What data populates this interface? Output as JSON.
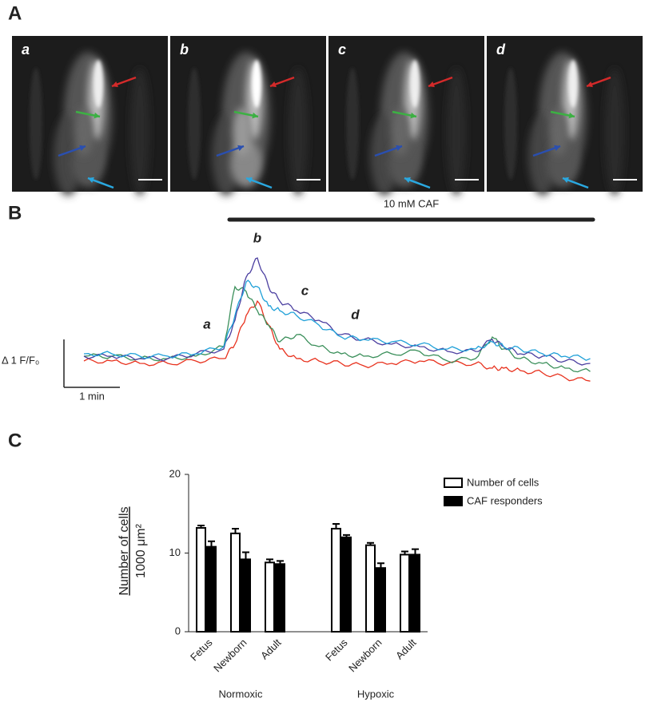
{
  "panels": [
    "A",
    "B",
    "C"
  ],
  "images": [
    "a",
    "b",
    "c",
    "d"
  ],
  "chart_data": [
    {
      "type": "line",
      "stimulus": {
        "label": "10 mM CAF",
        "start": 2.6,
        "end": 9.1
      },
      "scale_x": {
        "value": 1,
        "label": "1 min"
      },
      "scale_y": {
        "value": 1,
        "label": "Δ 1 F/F₀"
      },
      "annotations": [
        {
          "text": "a",
          "x": 2.2,
          "y": 0.8
        },
        {
          "text": "b",
          "x": 3.1,
          "y": 2.6
        },
        {
          "text": "c",
          "x": 3.95,
          "y": 1.5
        },
        {
          "text": "d",
          "x": 4.85,
          "y": 1.0
        }
      ],
      "x": [
        0,
        0.5,
        1,
        1.5,
        2,
        2.5,
        2.7,
        2.9,
        3.1,
        3.3,
        3.5,
        3.8,
        4.2,
        4.6,
        5,
        5.5,
        6,
        6.5,
        7,
        7.3,
        7.5,
        7.8,
        8.2,
        8.6,
        9.05
      ],
      "series": [
        {
          "color": "#e8321e",
          "values": [
            0.05,
            0.05,
            0,
            0,
            0.05,
            0.1,
            0.4,
            1.0,
            1.3,
            0.8,
            0.3,
            0.1,
            0.05,
            0,
            -0.05,
            0,
            0.05,
            0,
            0,
            -0.1,
            -0.1,
            -0.15,
            -0.2,
            -0.3,
            -0.37
          ]
        },
        {
          "color": "#3a8f5a",
          "values": [
            0.15,
            0.15,
            0.1,
            0.1,
            0.15,
            0.35,
            1.6,
            1.5,
            1.1,
            0.8,
            0.45,
            0.6,
            0.35,
            0.2,
            0.15,
            0.2,
            0.25,
            0.05,
            0.1,
            0.55,
            0.3,
            0.1,
            0,
            -0.1,
            -0.17
          ]
        },
        {
          "color": "#4b3fa0",
          "values": [
            0.15,
            0.15,
            0.1,
            0.1,
            0.2,
            0.3,
            0.9,
            1.8,
            2.2,
            1.6,
            1.3,
            1.1,
            0.9,
            0.6,
            0.5,
            0.4,
            0.35,
            0.25,
            0.25,
            0.5,
            0.35,
            0.2,
            0.15,
            0.05,
            0
          ]
        },
        {
          "color": "#1fa0d8",
          "values": [
            0.2,
            0.2,
            0.15,
            0.15,
            0.2,
            0.35,
            1.0,
            1.7,
            1.6,
            1.2,
            1.1,
            1.0,
            0.8,
            0.55,
            0.5,
            0.45,
            0.4,
            0.3,
            0.3,
            0.45,
            0.35,
            0.3,
            0.2,
            0.15,
            0.1
          ]
        }
      ]
    },
    {
      "type": "bar",
      "y_label": [
        "Number of cells",
        "1000 μm²"
      ],
      "categories": [
        "Fetus",
        "Newborn",
        "Adult",
        "Fetus",
        "Newborn",
        "Adult"
      ],
      "groups": [
        "Normoxic",
        "Hypoxic"
      ],
      "ylim": [
        0,
        20
      ],
      "yticks": [
        0,
        10,
        20
      ],
      "series": [
        {
          "name": "Number of cells",
          "color": "#ffffff",
          "values": [
            13.2,
            12.5,
            8.8,
            13.1,
            11.0,
            9.8
          ],
          "errors": [
            0.3,
            0.6,
            0.4,
            0.6,
            0.3,
            0.4
          ]
        },
        {
          "name": "CAF responders",
          "color": "#000000",
          "values": [
            10.8,
            9.2,
            8.6,
            12.0,
            8.1,
            9.8
          ],
          "errors": [
            0.7,
            0.9,
            0.4,
            0.3,
            0.6,
            0.7
          ]
        }
      ]
    }
  ]
}
